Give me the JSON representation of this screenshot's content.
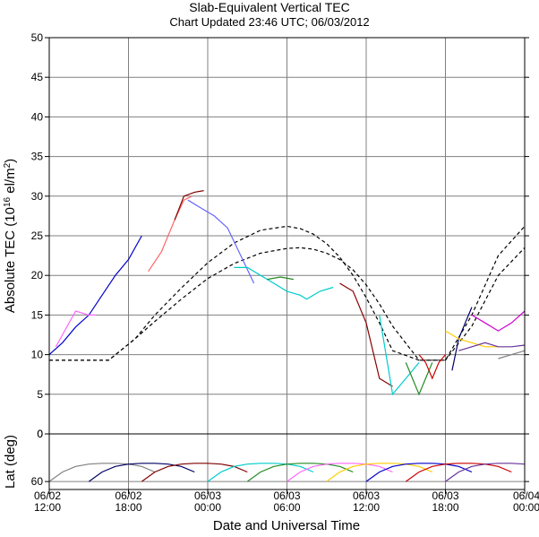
{
  "chart_data": [
    {
      "type": "line",
      "title": "Slab-Equivalent Vertical TEC",
      "subtitle": "Chart Updated 23:46 UTC; 06/03/2012",
      "ylabel_prefix": "Absolute TEC (10",
      "ylabel_sup1": "16",
      "ylabel_mid": " el/m",
      "ylabel_sup2": "2",
      "ylabel_suffix": ")",
      "ylim": [
        0,
        50
      ],
      "yticks": [
        0,
        5,
        10,
        15,
        20,
        25,
        30,
        35,
        40,
        45,
        50
      ],
      "xlim_hours": [
        0,
        36
      ],
      "grid": true,
      "series": [
        {
          "color": "#000000",
          "style": "dashed",
          "x": [
            0,
            4.5,
            6.5,
            8,
            10,
            12,
            14,
            16,
            18,
            19,
            20,
            21,
            22,
            23,
            24,
            25,
            26,
            28,
            30,
            32,
            34,
            36
          ],
          "y": [
            9.3,
            9.3,
            12,
            14.2,
            17,
            19.6,
            21.5,
            22.8,
            23.4,
            23.5,
            23.3,
            22.8,
            22,
            20.7,
            18.8,
            16.4,
            13.6,
            9.3,
            9.3,
            13.6,
            20,
            23.5
          ]
        },
        {
          "color": "#000000",
          "style": "dashed",
          "x": [
            0,
            4.5,
            6.5,
            8,
            10,
            12,
            14,
            16,
            18,
            19,
            20,
            21,
            22,
            23,
            24,
            25,
            26,
            28,
            30,
            32,
            34,
            36
          ],
          "y": [
            9.3,
            9.3,
            12,
            15,
            18.4,
            21.6,
            24.1,
            25.7,
            26.2,
            25.9,
            25.2,
            24,
            22.3,
            20,
            17.2,
            14,
            10.5,
            9.3,
            9.3,
            15,
            22.5,
            26.2
          ]
        },
        {
          "color": "#0000cc",
          "style": "solid",
          "x": [
            0,
            1,
            2,
            3,
            4,
            5,
            6,
            7
          ],
          "y": [
            10,
            11.5,
            13.5,
            15,
            17.5,
            20,
            22,
            25
          ]
        },
        {
          "color": "#ff66ff",
          "style": "solid",
          "x": [
            0.5,
            1.5,
            2,
            3,
            3.5
          ],
          "y": [
            11,
            14,
            15.5,
            15,
            15
          ]
        },
        {
          "color": "#ff6666",
          "style": "solid",
          "x": [
            7.5,
            8.5,
            9.5,
            10.2,
            10.8
          ],
          "y": [
            20.5,
            23,
            27,
            29.5,
            30
          ]
        },
        {
          "color": "#800000",
          "style": "solid",
          "x": [
            9.5,
            10.2,
            11,
            11.7
          ],
          "y": [
            27,
            30,
            30.5,
            30.7
          ]
        },
        {
          "color": "#6666ff",
          "style": "solid",
          "x": [
            10.5,
            11.5,
            12.5,
            13.5,
            14.5,
            15.5
          ],
          "y": [
            29.5,
            28.5,
            27.5,
            26,
            22.5,
            19
          ]
        },
        {
          "color": "#00cccc",
          "style": "solid",
          "x": [
            14,
            15,
            16,
            17,
            18,
            19,
            19.5,
            20.5,
            21.5
          ],
          "y": [
            21,
            21,
            20,
            19,
            18,
            17.5,
            17,
            18,
            18.5
          ]
        },
        {
          "color": "#228b22",
          "style": "solid",
          "x": [
            16.5,
            17.5,
            18.5
          ],
          "y": [
            19.5,
            19.8,
            19.5
          ]
        },
        {
          "color": "#8b0000",
          "style": "solid",
          "x": [
            22,
            23,
            24,
            25,
            26
          ],
          "y": [
            19,
            18,
            14,
            7,
            6
          ]
        },
        {
          "color": "#00cccc",
          "style": "solid",
          "x": [
            25,
            26,
            27,
            28
          ],
          "y": [
            15,
            5,
            7,
            9
          ]
        },
        {
          "color": "#228b22",
          "style": "solid",
          "x": [
            27,
            28,
            29
          ],
          "y": [
            9,
            5,
            9
          ]
        },
        {
          "color": "#cc0000",
          "style": "solid",
          "x": [
            28,
            28.5,
            29,
            29.5,
            30
          ],
          "y": [
            10,
            9,
            7,
            9,
            10
          ]
        },
        {
          "color": "#000066",
          "style": "solid",
          "x": [
            30.5,
            31,
            31.5,
            32
          ],
          "y": [
            8,
            12,
            14,
            16
          ]
        },
        {
          "color": "#cc00cc",
          "style": "solid",
          "x": [
            32,
            33,
            34,
            35,
            36
          ],
          "y": [
            15,
            14,
            13,
            14,
            15.5
          ]
        },
        {
          "color": "#ffcc00",
          "style": "solid",
          "x": [
            30,
            31,
            32,
            33,
            34
          ],
          "y": [
            13,
            12,
            11.5,
            11,
            11
          ]
        },
        {
          "color": "#808080",
          "style": "solid",
          "x": [
            34,
            35,
            36
          ],
          "y": [
            9.5,
            10,
            10.5
          ]
        },
        {
          "color": "#663399",
          "style": "solid",
          "x": [
            31,
            32,
            33,
            34,
            35,
            36
          ],
          "y": [
            10.5,
            11,
            11.5,
            11,
            11,
            11.2
          ]
        }
      ]
    },
    {
      "type": "line",
      "ylabel": "Lat (deg)",
      "ylim": [
        70,
        0
      ],
      "yticks": [
        0,
        60
      ],
      "xlim_hours": [
        0,
        36
      ],
      "grid": true,
      "series": [
        {
          "color": "#808080",
          "style": "solid",
          "x": [
            0,
            1,
            2,
            3,
            4,
            5,
            6,
            7,
            8
          ],
          "y": [
            60,
            48,
            41,
            38,
            37,
            37,
            38,
            41,
            48
          ]
        },
        {
          "color": "#000066",
          "style": "solid",
          "x": [
            3,
            4,
            5,
            6,
            7,
            8,
            9,
            10,
            11
          ],
          "y": [
            60,
            48,
            41,
            38,
            37,
            37,
            38,
            41,
            48
          ]
        },
        {
          "color": "#800000",
          "style": "solid",
          "x": [
            7,
            8,
            9,
            10,
            11,
            12,
            13,
            14,
            15
          ],
          "y": [
            60,
            48,
            41,
            38,
            37,
            37,
            38,
            41,
            48
          ]
        },
        {
          "color": "#00cccc",
          "style": "solid",
          "x": [
            12,
            13,
            14,
            15,
            16,
            17,
            18,
            19,
            20
          ],
          "y": [
            60,
            48,
            41,
            38,
            37,
            37,
            38,
            41,
            48
          ]
        },
        {
          "color": "#228b22",
          "style": "solid",
          "x": [
            15,
            16,
            17,
            18,
            19,
            20,
            21,
            22,
            23
          ],
          "y": [
            60,
            48,
            41,
            38,
            37,
            37,
            38,
            41,
            48
          ]
        },
        {
          "color": "#ff66ff",
          "style": "solid",
          "x": [
            18,
            19,
            20,
            21,
            22,
            23,
            24,
            25,
            26
          ],
          "y": [
            60,
            48,
            41,
            38,
            37,
            37,
            38,
            41,
            48
          ]
        },
        {
          "color": "#ffcc00",
          "style": "solid",
          "x": [
            21,
            22,
            23,
            24,
            25,
            26,
            27,
            28,
            29
          ],
          "y": [
            60,
            48,
            41,
            38,
            37,
            37,
            38,
            41,
            48
          ]
        },
        {
          "color": "#0000cc",
          "style": "solid",
          "x": [
            24,
            25,
            26,
            27,
            28,
            29,
            30,
            31,
            32
          ],
          "y": [
            60,
            48,
            41,
            38,
            37,
            37,
            38,
            41,
            48
          ]
        },
        {
          "color": "#cc0000",
          "style": "solid",
          "x": [
            27,
            28,
            29,
            30,
            31,
            32,
            33,
            34,
            35
          ],
          "y": [
            60,
            48,
            41,
            38,
            37,
            37,
            38,
            41,
            48
          ]
        },
        {
          "color": "#663399",
          "style": "solid",
          "x": [
            30,
            31,
            32,
            33,
            34,
            35,
            36
          ],
          "y": [
            60,
            48,
            41,
            38,
            37,
            37,
            38
          ]
        }
      ]
    }
  ],
  "x_axis": {
    "label": "Date and Universal Time",
    "ticks": [
      {
        "date": "06/02",
        "time": "12:00"
      },
      {
        "date": "06/02",
        "time": "18:00"
      },
      {
        "date": "06/03",
        "time": "00:00"
      },
      {
        "date": "06/03",
        "time": "06:00"
      },
      {
        "date": "06/03",
        "time": "12:00"
      },
      {
        "date": "06/03",
        "time": "18:00"
      },
      {
        "date": "06/04",
        "time": "00:00"
      }
    ]
  },
  "colors": {
    "grid": "#808080",
    "axis": "#000000",
    "background": "#ffffff"
  }
}
